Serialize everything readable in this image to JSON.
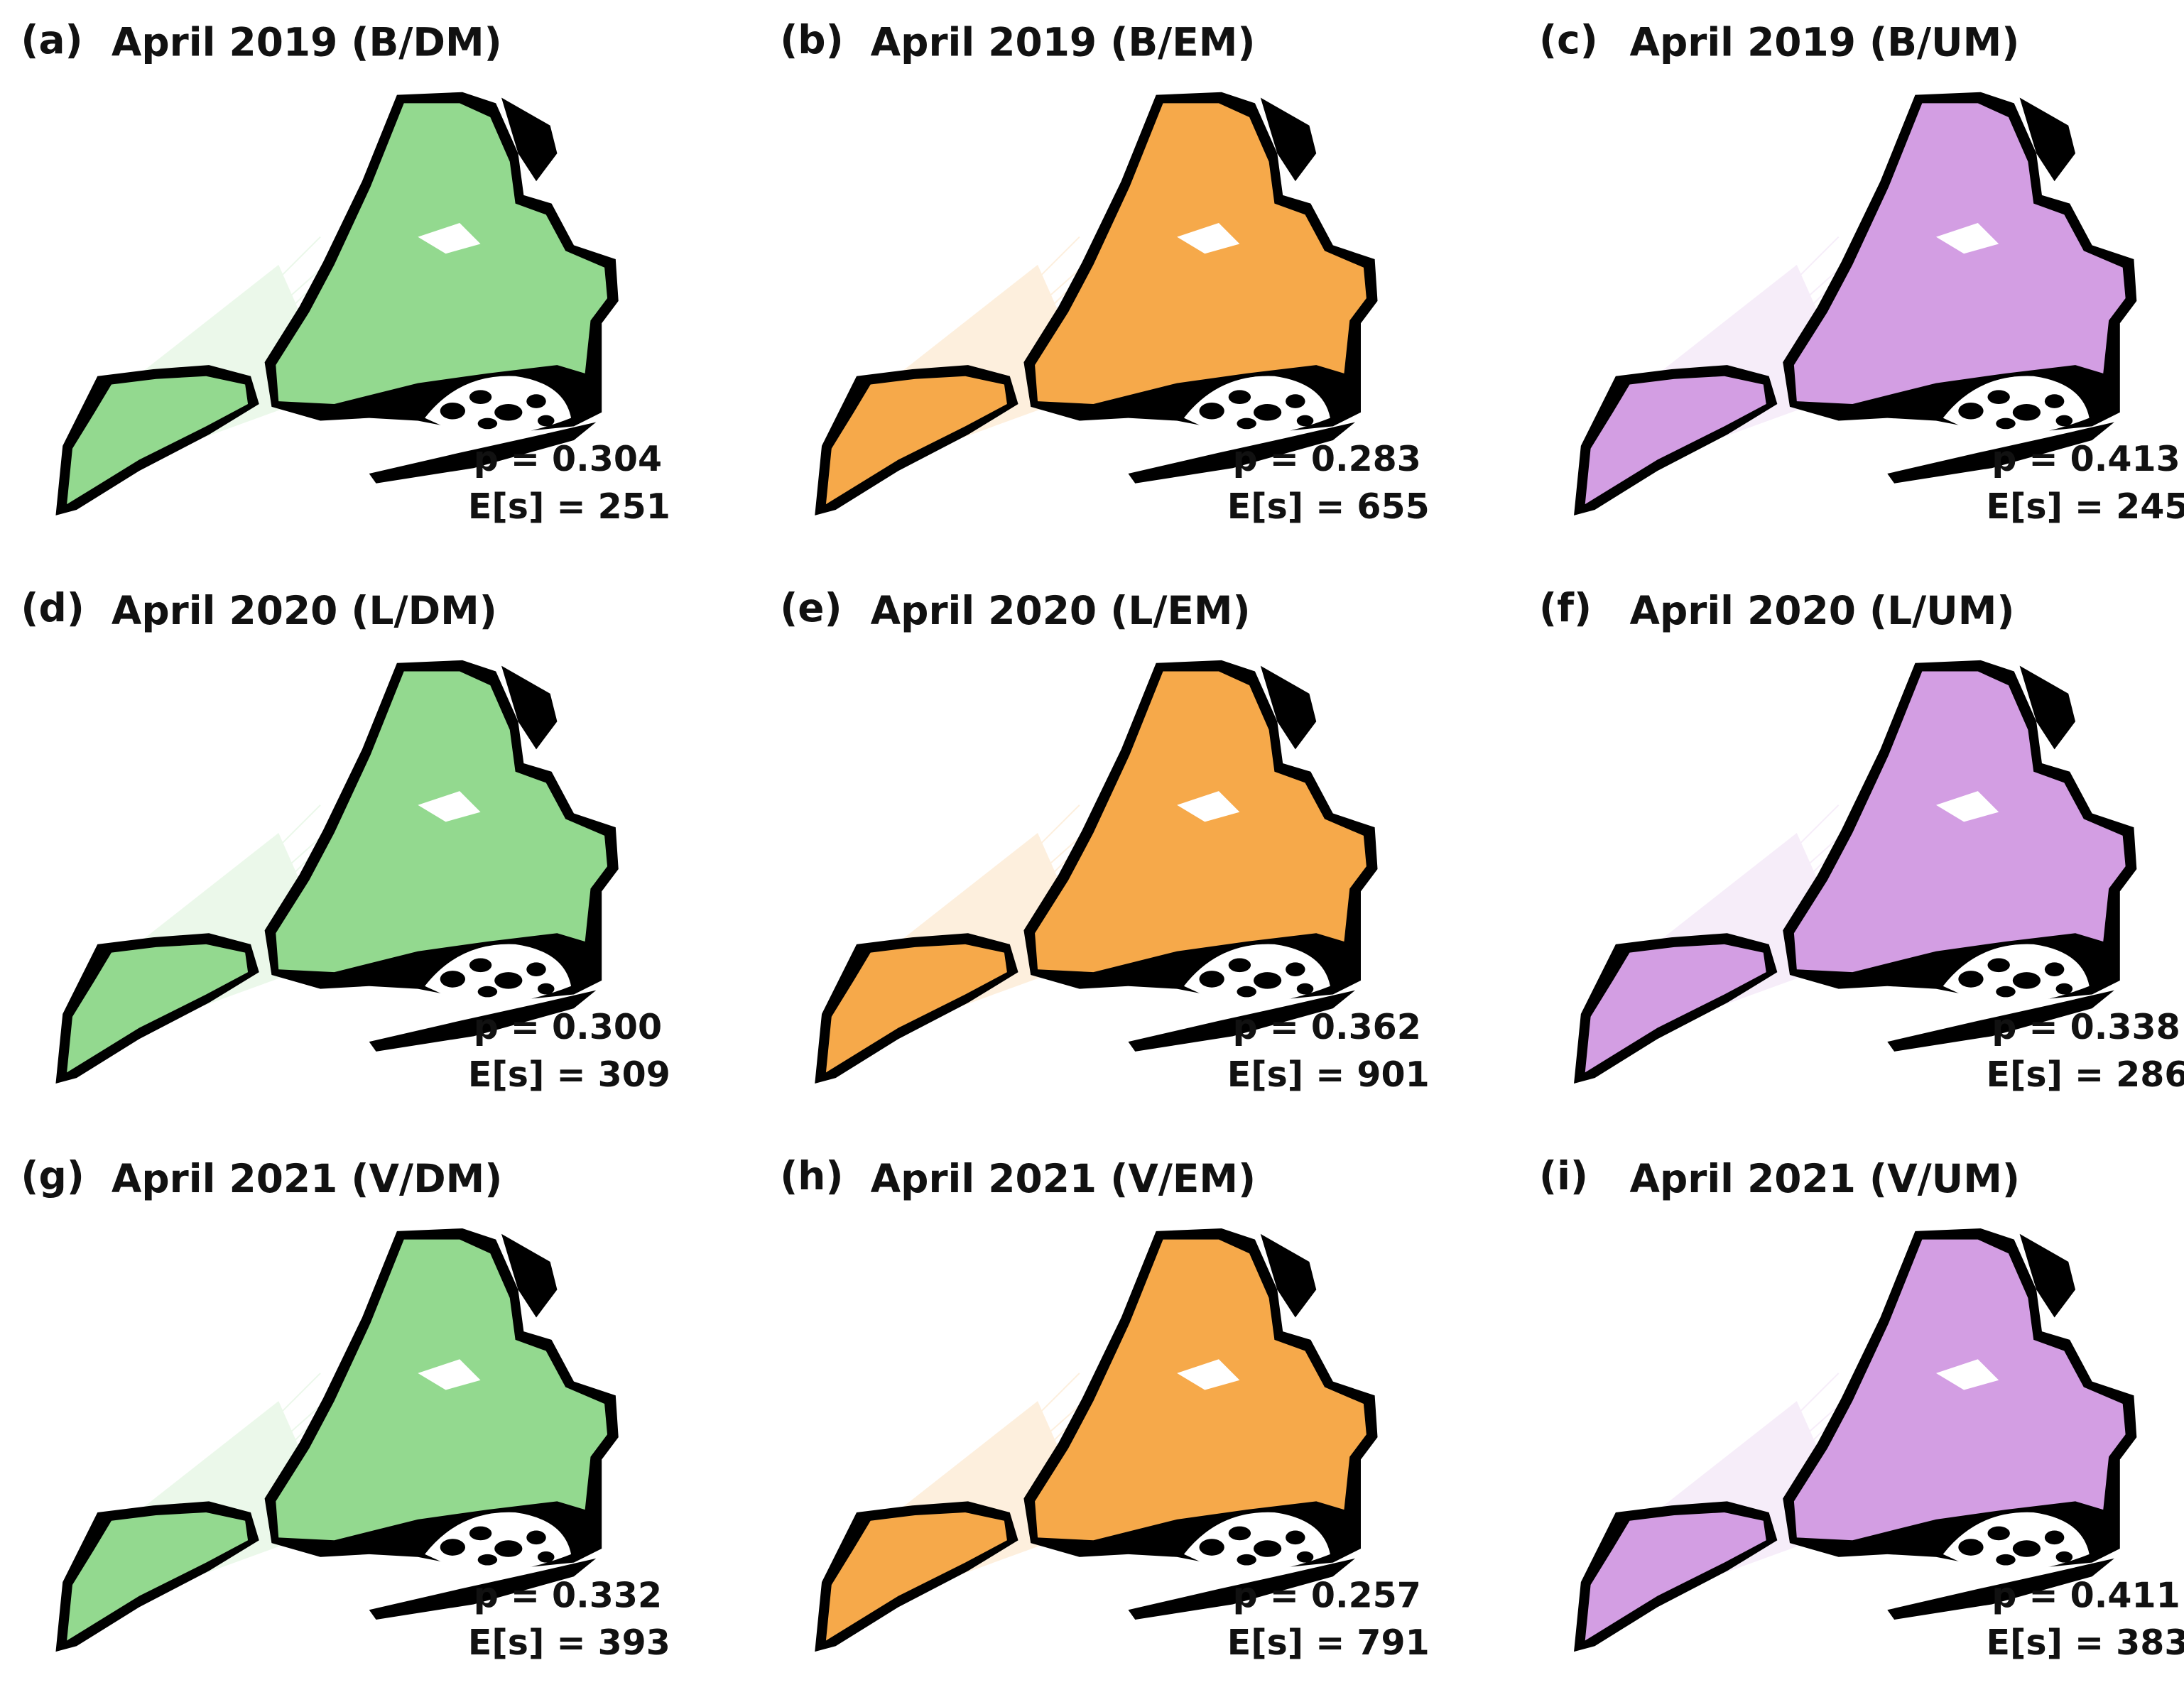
{
  "panels": [
    {
      "label": "(a)",
      "title": "April 2019 (B/DM)",
      "p": "p = 0.304",
      "es": "E[s] = 251"
    },
    {
      "label": "(b)",
      "title": "April 2019 (B/EM)",
      "p": "p = 0.283",
      "es": "E[s] = 655"
    },
    {
      "label": "(c)",
      "title": "April 2019 (B/UM)",
      "p": "p = 0.413",
      "es": "E[s] = 245"
    },
    {
      "label": "(d)",
      "title": "April 2020 (L/DM)",
      "p": "p = 0.300",
      "es": "E[s] = 309"
    },
    {
      "label": "(e)",
      "title": "April 2020 (L/EM)",
      "p": "p = 0.362",
      "es": "E[s] = 901"
    },
    {
      "label": "(f)",
      "title": "April 2020 (L/UM)",
      "p": "p = 0.338",
      "es": "E[s] = 286"
    },
    {
      "label": "(g)",
      "title": "April 2021 (V/DM)",
      "p": "p = 0.332",
      "es": "E[s] = 393"
    },
    {
      "label": "(h)",
      "title": "April 2021 (V/EM)",
      "p": "p = 0.257",
      "es": "E[s] = 791"
    },
    {
      "label": "(i)",
      "title": "April 2021 (V/UM)",
      "p": "p = 0.411",
      "es": "E[s] = 383"
    }
  ]
}
